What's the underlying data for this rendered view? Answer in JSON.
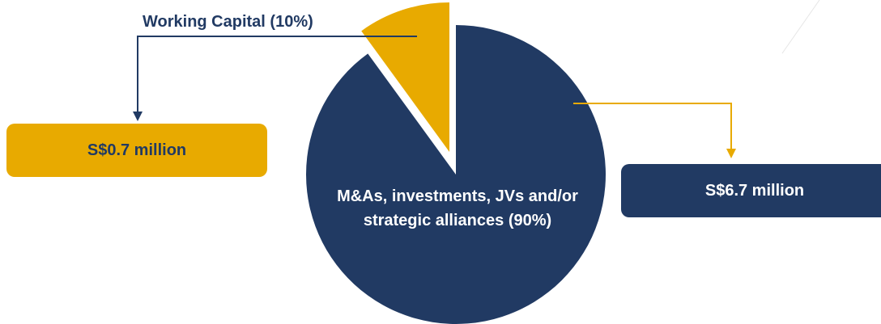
{
  "chart_data": {
    "type": "pie",
    "categories": [
      "Working Capital (10%)",
      "M&As, investments, JVs and/or strategic alliances (90%)"
    ],
    "values": [
      10,
      90
    ],
    "colors": [
      "#e8aa00",
      "#213a63"
    ],
    "annotations": [
      "S$0.7 million",
      "S$6.7 million"
    ]
  }
}
